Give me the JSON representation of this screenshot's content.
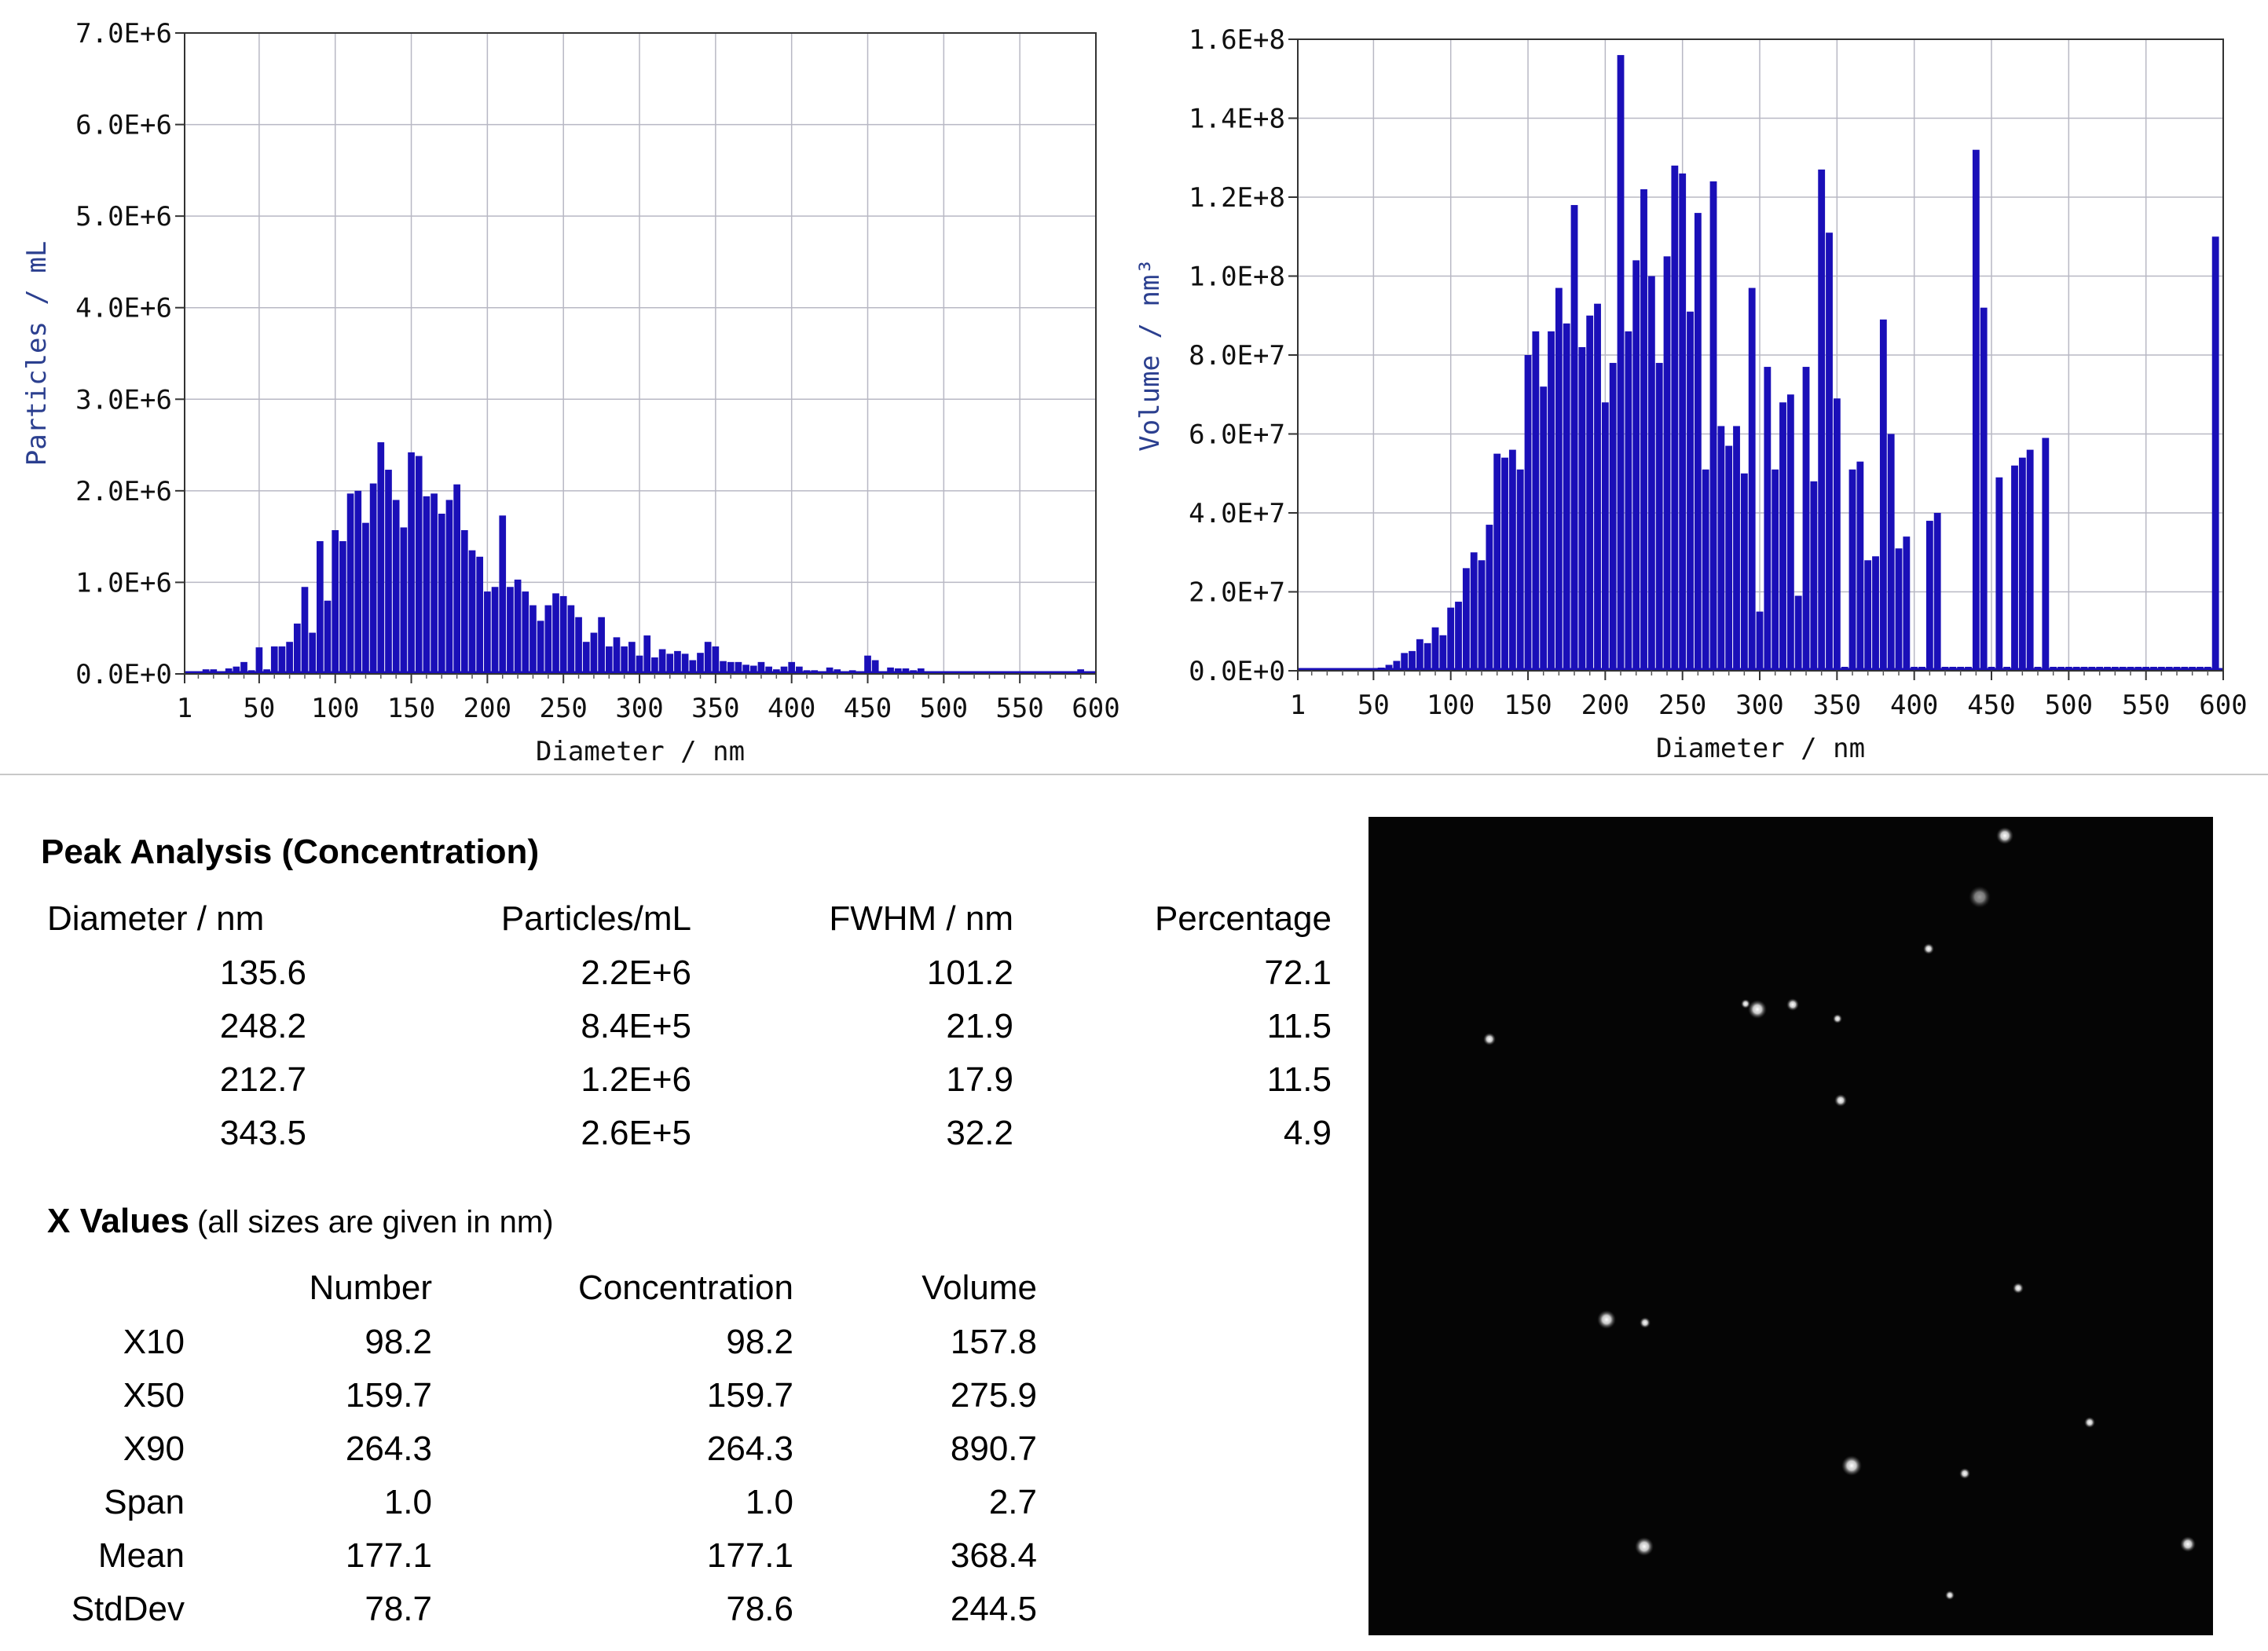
{
  "chart_data": [
    {
      "type": "bar",
      "title": "",
      "xlabel": "Diameter / nm",
      "ylabel": "Particles / mL",
      "xlim": [
        1,
        600
      ],
      "ylim": [
        0,
        7000000
      ],
      "xtick_labels": [
        "1",
        "50",
        "100",
        "150",
        "200",
        "250",
        "300",
        "350",
        "400",
        "450",
        "500",
        "550",
        "600"
      ],
      "ytick_labels": [
        "0.0E+0",
        "1.0E+6",
        "2.0E+6",
        "3.0E+6",
        "4.0E+6",
        "5.0E+6",
        "6.0E+6",
        "7.0E+6"
      ],
      "grid": true,
      "bar_color": "#1a0fb8",
      "x": [
        15,
        20,
        25,
        30,
        35,
        40,
        45,
        50,
        55,
        60,
        65,
        70,
        75,
        80,
        85,
        90,
        95,
        100,
        105,
        110,
        115,
        120,
        125,
        130,
        135,
        140,
        145,
        150,
        155,
        160,
        165,
        170,
        175,
        180,
        185,
        190,
        195,
        200,
        205,
        210,
        215,
        220,
        225,
        230,
        235,
        240,
        245,
        250,
        255,
        260,
        265,
        270,
        275,
        280,
        285,
        290,
        295,
        300,
        305,
        310,
        315,
        320,
        325,
        330,
        335,
        340,
        345,
        350,
        355,
        360,
        365,
        370,
        375,
        380,
        385,
        390,
        395,
        400,
        405,
        410,
        415,
        420,
        425,
        430,
        435,
        440,
        445,
        450,
        455,
        460,
        465,
        470,
        475,
        480,
        485,
        490,
        495,
        500,
        505,
        510,
        515,
        520,
        525,
        530,
        535,
        540,
        545,
        550,
        555,
        560,
        565,
        570,
        575,
        580,
        585,
        590,
        595
      ],
      "values": [
        50000,
        50000,
        30000,
        60000,
        80000,
        130000,
        40000,
        290000,
        50000,
        300000,
        300000,
        350000,
        550000,
        950000,
        450000,
        1450000,
        800000,
        1570000,
        1450000,
        1970000,
        2000000,
        1650000,
        2080000,
        2530000,
        2230000,
        1900000,
        1600000,
        2420000,
        2380000,
        1940000,
        1970000,
        1750000,
        1900000,
        2070000,
        1570000,
        1350000,
        1280000,
        900000,
        950000,
        1730000,
        950000,
        1030000,
        900000,
        750000,
        580000,
        750000,
        880000,
        850000,
        750000,
        620000,
        350000,
        450000,
        620000,
        300000,
        400000,
        300000,
        350000,
        200000,
        420000,
        180000,
        270000,
        220000,
        250000,
        220000,
        150000,
        230000,
        350000,
        300000,
        140000,
        130000,
        130000,
        100000,
        90000,
        130000,
        80000,
        50000,
        80000,
        130000,
        80000,
        40000,
        40000,
        30000,
        70000,
        50000,
        30000,
        40000,
        30000,
        200000,
        150000,
        30000,
        70000,
        60000,
        60000,
        40000,
        60000,
        20000,
        20000,
        20000,
        20000,
        20000,
        20000,
        20000,
        20000,
        20000,
        20000,
        20000,
        20000,
        20000,
        20000,
        20000,
        20000,
        20000,
        20000,
        20000,
        20000,
        50000,
        20000
      ]
    },
    {
      "type": "bar",
      "title": "",
      "xlabel": "Diameter / nm",
      "ylabel": "Volume / nm³",
      "xlim": [
        1,
        600
      ],
      "ylim": [
        0,
        160000000
      ],
      "xtick_labels": [
        "1",
        "50",
        "100",
        "150",
        "200",
        "250",
        "300",
        "350",
        "400",
        "450",
        "500",
        "550",
        "600"
      ],
      "ytick_labels": [
        "0.0E+0",
        "2.0E+7",
        "4.0E+7",
        "6.0E+7",
        "8.0E+7",
        "1.0E+8",
        "1.2E+8",
        "1.4E+8",
        "1.6E+8"
      ],
      "grid": true,
      "bar_color": "#1a0fb8",
      "x": [
        50,
        55,
        60,
        65,
        70,
        75,
        80,
        85,
        90,
        95,
        100,
        105,
        110,
        115,
        120,
        125,
        130,
        135,
        140,
        145,
        150,
        155,
        160,
        165,
        170,
        175,
        180,
        185,
        190,
        195,
        200,
        205,
        210,
        215,
        220,
        225,
        230,
        235,
        240,
        245,
        250,
        255,
        260,
        265,
        270,
        275,
        280,
        285,
        290,
        295,
        300,
        305,
        310,
        315,
        320,
        325,
        330,
        335,
        340,
        345,
        350,
        355,
        360,
        365,
        370,
        375,
        380,
        385,
        390,
        395,
        400,
        405,
        410,
        415,
        420,
        425,
        430,
        435,
        440,
        445,
        450,
        455,
        460,
        465,
        470,
        475,
        480,
        485,
        490,
        495,
        500,
        505,
        510,
        515,
        520,
        525,
        530,
        535,
        540,
        545,
        550,
        555,
        560,
        565,
        570,
        575,
        580,
        585,
        590,
        595
      ],
      "values": [
        500000,
        800000,
        1500000,
        2500000,
        4500000,
        5000000,
        8000000,
        7000000,
        11000000,
        9000000,
        16000000,
        17500000,
        26000000,
        30000000,
        28000000,
        37000000,
        55000000,
        54000000,
        56000000,
        51000000,
        80000000,
        86000000,
        72000000,
        86000000,
        97000000,
        88000000,
        118000000,
        82000000,
        90000000,
        93000000,
        68000000,
        78000000,
        156000000,
        86000000,
        104000000,
        122000000,
        100000000,
        78000000,
        105000000,
        128000000,
        126000000,
        91000000,
        116000000,
        51000000,
        124000000,
        62000000,
        57000000,
        62000000,
        50000000,
        97000000,
        15000000,
        77000000,
        51000000,
        68000000,
        70000000,
        19000000,
        77000000,
        48000000,
        127000000,
        111000000,
        69000000,
        1000000,
        51000000,
        53000000,
        28000000,
        29000000,
        89000000,
        60000000,
        31000000,
        34000000,
        1000000,
        1000000,
        38000000,
        40000000,
        1000000,
        1000000,
        1000000,
        1000000,
        132000000,
        92000000,
        1000000,
        49000000,
        1000000,
        52000000,
        54000000,
        56000000,
        1000000,
        59000000,
        1000000,
        1000000,
        1000000,
        1000000,
        1000000,
        1000000,
        1000000,
        1000000,
        1000000,
        1000000,
        1000000,
        1000000,
        1000000,
        1000000,
        1000000,
        1000000,
        1000000,
        1000000,
        1000000,
        1000000,
        1000000,
        110000000
      ]
    }
  ],
  "peak_analysis": {
    "title": "Peak Analysis (Concentration)",
    "headers": [
      "Diameter / nm",
      "Particles/mL",
      "FWHM / nm",
      "Percentage"
    ],
    "rows": [
      [
        "135.6",
        "2.2E+6",
        "101.2",
        "72.1"
      ],
      [
        "248.2",
        "8.4E+5",
        "21.9",
        "11.5"
      ],
      [
        "212.7",
        "1.2E+6",
        "17.9",
        "11.5"
      ],
      [
        "343.5",
        "2.6E+5",
        "32.2",
        "4.9"
      ]
    ]
  },
  "x_values": {
    "title": "X Values",
    "note": "(all sizes are given in nm)",
    "headers": [
      "",
      "Number",
      "Concentration",
      "Volume"
    ],
    "rows": [
      [
        "X10",
        "98.2",
        "98.2",
        "157.8"
      ],
      [
        "X50",
        "159.7",
        "159.7",
        "275.9"
      ],
      [
        "X90",
        "264.3",
        "264.3",
        "890.7"
      ],
      [
        "Span",
        "1.0",
        "1.0",
        "2.7"
      ],
      [
        "Mean",
        "177.1",
        "177.1",
        "368.4"
      ],
      [
        "StdDev",
        "78.7",
        "78.6",
        "244.5"
      ]
    ]
  }
}
